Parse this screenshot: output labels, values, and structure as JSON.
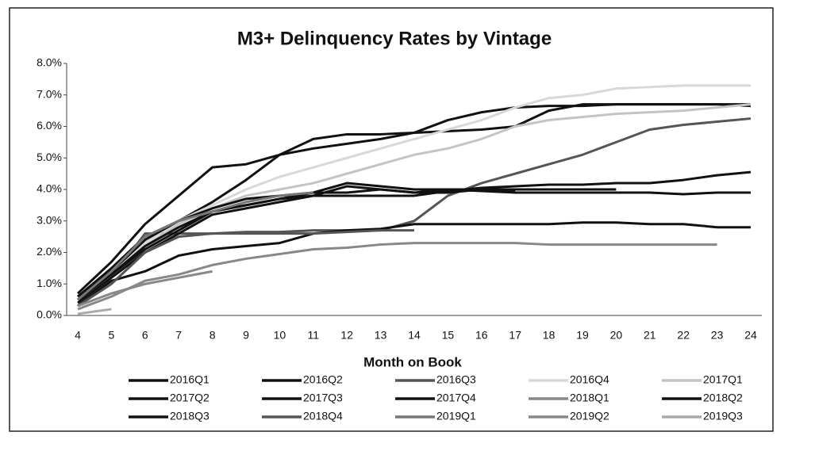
{
  "chart_data": {
    "type": "line",
    "title": "M3+ Delinquency Rates by Vintage",
    "x_label": "Month on Book",
    "categories": [
      4,
      5,
      6,
      7,
      8,
      9,
      10,
      11,
      12,
      13,
      14,
      15,
      16,
      17,
      18,
      19,
      20,
      21,
      22,
      23,
      24
    ],
    "ylim": [
      0,
      8
    ],
    "yticks": [
      {
        "value": 0,
        "label": "0.0%"
      },
      {
        "value": 1,
        "label": "1.0%"
      },
      {
        "value": 2,
        "label": "2.0%"
      },
      {
        "value": 3,
        "label": "3.0%"
      },
      {
        "value": 4,
        "label": "4.0%"
      },
      {
        "value": 5,
        "label": "5.0%"
      },
      {
        "value": 6,
        "label": "6.0%"
      },
      {
        "value": 7,
        "label": "7.0%"
      },
      {
        "value": 8,
        "label": "8.0%"
      }
    ],
    "grid": false,
    "legend": "bottom",
    "series": [
      {
        "name": "2016Q1",
        "color": "#111111",
        "values": [
          0.7,
          1.7,
          2.9,
          3.8,
          4.7,
          4.8,
          5.1,
          5.3,
          5.45,
          5.6,
          5.8,
          5.85,
          5.9,
          6.0,
          6.5,
          6.7,
          6.7,
          6.7,
          6.7,
          6.7,
          6.7
        ]
      },
      {
        "name": "2016Q2",
        "color": "#111111",
        "values": [
          0.6,
          1.5,
          2.5,
          3.0,
          3.6,
          4.3,
          5.1,
          5.6,
          5.75,
          5.75,
          5.8,
          6.2,
          6.45,
          6.6,
          6.65,
          6.65,
          6.7,
          6.7,
          6.7,
          6.7,
          6.65
        ]
      },
      {
        "name": "2016Q3",
        "color": "#555555",
        "values": [
          0.3,
          1.2,
          2.6,
          2.6,
          2.6,
          2.65,
          2.65,
          2.7,
          2.7,
          2.7,
          3.0,
          3.8,
          4.2,
          4.5,
          4.8,
          5.1,
          5.5,
          5.9,
          6.05,
          6.15,
          6.25
        ]
      },
      {
        "name": "2016Q4",
        "color": "#d8d8d8",
        "values": [
          0.5,
          1.3,
          2.3,
          3.0,
          3.5,
          4.0,
          4.4,
          4.7,
          5.0,
          5.3,
          5.6,
          5.9,
          6.2,
          6.6,
          6.9,
          7.0,
          7.2,
          7.25,
          7.3,
          7.3,
          7.3
        ]
      },
      {
        "name": "2017Q1",
        "color": "#c4c4c4",
        "values": [
          0.4,
          1.2,
          2.2,
          2.9,
          3.4,
          3.8,
          4.0,
          4.2,
          4.5,
          4.8,
          5.1,
          5.3,
          5.6,
          6.0,
          6.2,
          6.3,
          6.4,
          6.45,
          6.5,
          6.6,
          6.7
        ]
      },
      {
        "name": "2017Q2",
        "color": "#111111",
        "values": [
          0.5,
          1.3,
          2.1,
          2.7,
          3.3,
          3.5,
          3.7,
          3.8,
          3.8,
          3.8,
          3.8,
          3.95,
          4.05,
          4.1,
          4.15,
          4.15,
          4.2,
          4.2,
          4.3,
          4.45,
          4.55
        ]
      },
      {
        "name": "2017Q3",
        "color": "#111111",
        "values": [
          0.4,
          1.2,
          2.0,
          2.6,
          3.2,
          3.4,
          3.6,
          3.8,
          4.1,
          4.0,
          3.9,
          4.0,
          3.95,
          3.9,
          3.9,
          3.9,
          3.9,
          3.9,
          3.85,
          3.9,
          3.9
        ]
      },
      {
        "name": "2017Q4",
        "color": "#111111",
        "values": [
          0.3,
          1.1,
          1.4,
          1.9,
          2.1,
          2.2,
          2.3,
          2.6,
          2.7,
          2.75,
          2.9,
          2.9,
          2.9,
          2.9,
          2.9,
          2.95,
          2.95,
          2.9,
          2.9,
          2.8,
          2.8
        ]
      },
      {
        "name": "2018Q1",
        "color": "#888888",
        "values": [
          0.2,
          0.6,
          1.1,
          1.3,
          1.6,
          1.8,
          1.95,
          2.1,
          2.15,
          2.25,
          2.3,
          2.3,
          2.3,
          2.3,
          2.25,
          2.25,
          2.25,
          2.25,
          2.25,
          2.25,
          null
        ]
      },
      {
        "name": "2018Q2",
        "color": "#111111",
        "values": [
          0.5,
          1.3,
          2.2,
          2.8,
          3.3,
          3.5,
          3.7,
          3.9,
          4.2,
          4.1,
          4.0,
          4.0,
          4.0,
          4.0,
          4.0,
          4.0,
          4.0,
          null,
          null,
          null,
          null
        ]
      },
      {
        "name": "2018Q3",
        "color": "#111111",
        "values": [
          0.6,
          1.4,
          2.4,
          3.0,
          3.4,
          3.7,
          3.8,
          3.9,
          3.9,
          4.0,
          3.9,
          3.9,
          4.0,
          3.95,
          null,
          null,
          null,
          null,
          null,
          null,
          null
        ]
      },
      {
        "name": "2018Q4",
        "color": "#555555",
        "values": [
          0.3,
          1.0,
          2.0,
          2.5,
          2.6,
          2.6,
          2.6,
          2.6,
          2.65,
          2.7,
          2.7,
          null,
          null,
          null,
          null,
          null,
          null,
          null,
          null,
          null,
          null
        ]
      },
      {
        "name": "2019Q1",
        "color": "#777777",
        "values": [
          0.5,
          1.4,
          2.5,
          3.0,
          3.3,
          3.6,
          3.8,
          3.9,
          null,
          null,
          null,
          null,
          null,
          null,
          null,
          null,
          null,
          null,
          null,
          null,
          null
        ]
      },
      {
        "name": "2019Q2",
        "color": "#888888",
        "values": [
          0.3,
          0.7,
          1.0,
          1.2,
          1.4,
          null,
          null,
          null,
          null,
          null,
          null,
          null,
          null,
          null,
          null,
          null,
          null,
          null,
          null,
          null,
          null
        ]
      },
      {
        "name": "2019Q3",
        "color": "#aaaaaa",
        "values": [
          0.05,
          0.2,
          null,
          null,
          null,
          null,
          null,
          null,
          null,
          null,
          null,
          null,
          null,
          null,
          null,
          null,
          null,
          null,
          null,
          null,
          null
        ]
      }
    ]
  }
}
